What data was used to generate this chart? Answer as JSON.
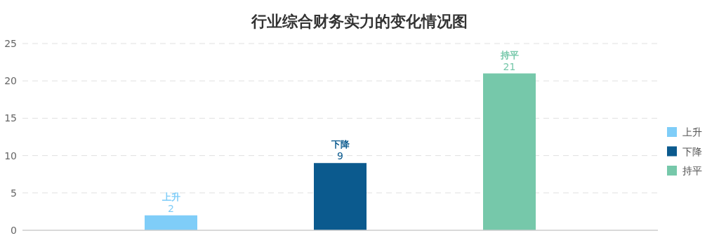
{
  "chart_data": {
    "type": "bar",
    "title": "行业综合财务实力的变化情况图",
    "categories": [
      null
    ],
    "series": [
      {
        "name": "上升",
        "color": "#7fcdf8",
        "values": [
          2
        ]
      },
      {
        "name": "下降",
        "color": "#0b5a8e",
        "values": [
          9
        ]
      },
      {
        "name": "持平",
        "color": "#76c8aa",
        "values": [
          21
        ]
      }
    ],
    "ylim": [
      0,
      25
    ],
    "yticks": [
      0,
      5,
      10,
      15,
      20,
      25
    ],
    "grid": "y",
    "legend": "right",
    "data_labels": true
  }
}
